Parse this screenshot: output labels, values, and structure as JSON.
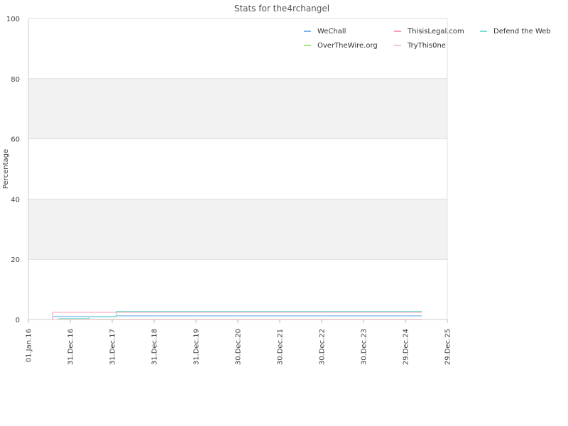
{
  "chart_data": {
    "type": "line",
    "title": "Stats for the4rchangel",
    "ylabel": "Percentage",
    "xlabel": "",
    "ylim": [
      0,
      100
    ],
    "y_ticks": [
      0,
      20,
      40,
      60,
      80,
      100
    ],
    "y_tick_labels": [
      "0",
      "20",
      "40",
      "60",
      "80",
      "100"
    ],
    "xlim": [
      "2016-01-01",
      "2025-12-29"
    ],
    "x_ticks": [
      "2016-01-01",
      "2016-12-31",
      "2017-12-31",
      "2018-12-31",
      "2019-12-31",
      "2020-12-30",
      "2021-12-30",
      "2022-12-30",
      "2023-12-30",
      "2024-12-29",
      "2025-12-29"
    ],
    "x_tick_labels": [
      "01.Jan.16",
      "31.Dec.16",
      "31.Dec.17",
      "31.Dec.18",
      "31.Dec.19",
      "30.Dec.20",
      "30.Dec.21",
      "30.Dec.22",
      "30.Dec.23",
      "29.Dec.24",
      "29.Dec.25"
    ],
    "grid": true,
    "legend_position": "top-right",
    "band_color": "#f2f2f2",
    "series": [
      {
        "name": "WeChall",
        "color": "#7cb5ec",
        "step": true,
        "points": [
          {
            "x": "2016-08-01",
            "y": 0
          },
          {
            "x": "2016-08-01",
            "y": 1.0
          },
          {
            "x": "2018-02-05",
            "y": 1.0
          },
          {
            "x": "2018-02-05",
            "y": 1.2
          },
          {
            "x": "2025-05-20",
            "y": 1.2
          }
        ]
      },
      {
        "name": "ThisisLegal.com",
        "color": "#f7a1b5",
        "step": true,
        "points": [
          {
            "x": "2016-08-01",
            "y": 0
          },
          {
            "x": "2016-08-01",
            "y": 2.4
          },
          {
            "x": "2025-05-20",
            "y": 2.4
          }
        ]
      },
      {
        "name": "Defend the Web",
        "color": "#7be0d0",
        "step": true,
        "points": [
          {
            "x": "2016-09-20",
            "y": 0.3
          },
          {
            "x": "2017-06-15",
            "y": 0.3
          },
          {
            "x": "2017-06-15",
            "y": 0.9
          },
          {
            "x": "2018-02-05",
            "y": 0.9
          },
          {
            "x": "2018-02-05",
            "y": 2.7
          },
          {
            "x": "2025-05-20",
            "y": 2.7
          }
        ]
      },
      {
        "name": "OverTheWire.org",
        "color": "#a0e890",
        "step": true,
        "points": [
          {
            "x": "2016-09-01",
            "y": 0.1
          },
          {
            "x": "2025-05-20",
            "y": 0.1
          }
        ]
      },
      {
        "name": "TryThis0ne",
        "color": "#f4c2d8",
        "step": true,
        "points": [
          {
            "x": "2016-08-01",
            "y": 0
          },
          {
            "x": "2025-05-20",
            "y": 0
          }
        ]
      }
    ]
  }
}
